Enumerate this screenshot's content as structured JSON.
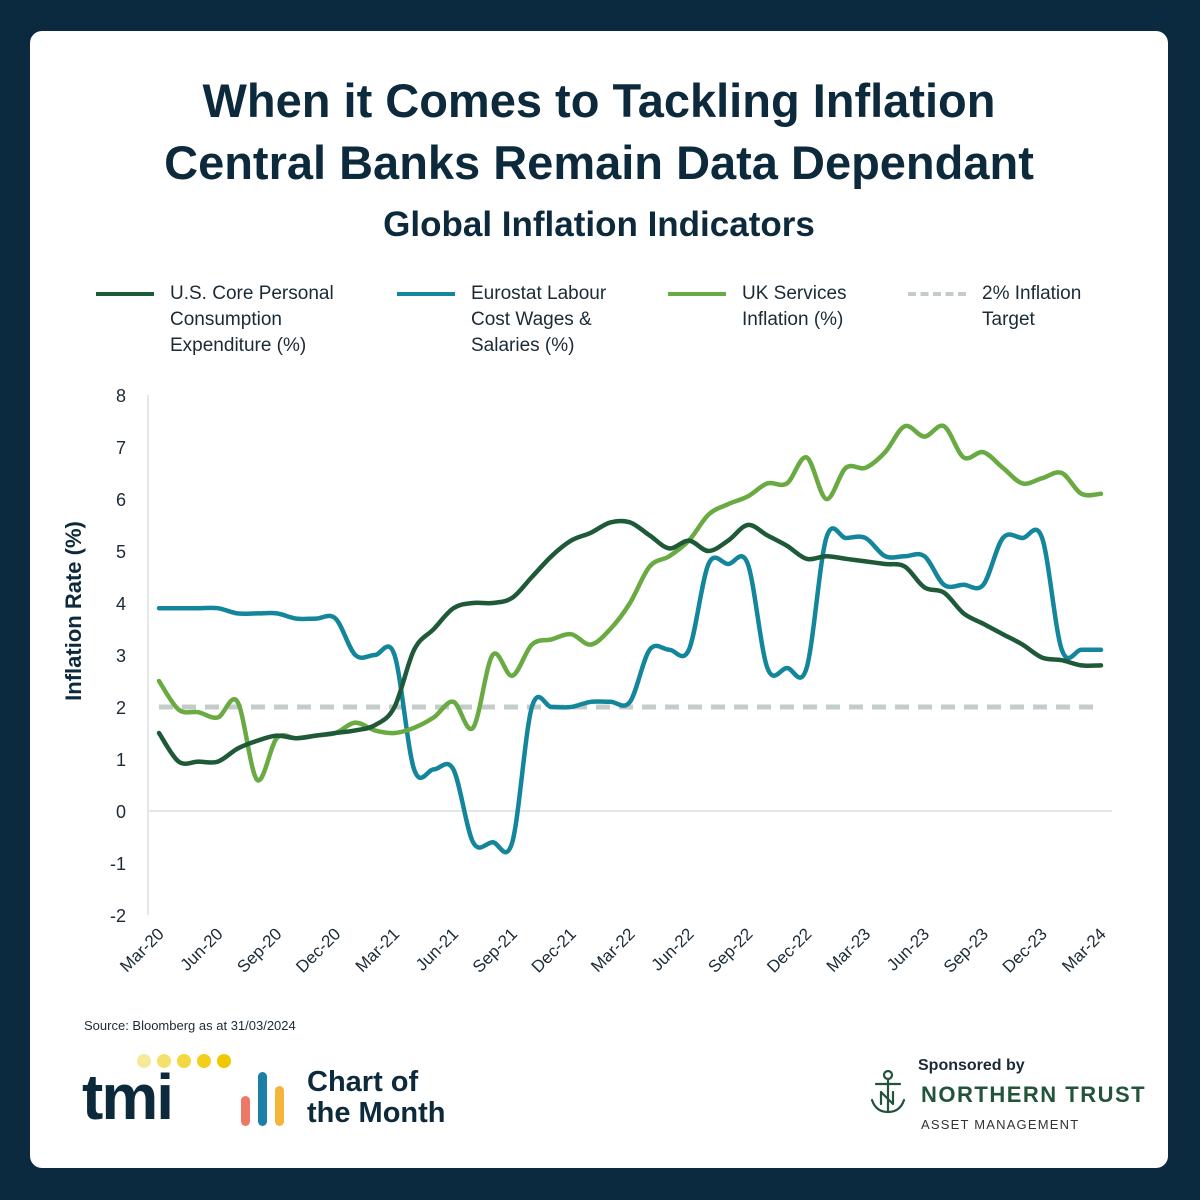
{
  "header": {
    "title_line1": "When it Comes to Tackling Inflation",
    "title_line2": "Central Banks Remain Data Dependant",
    "subtitle": "Global Inflation Indicators"
  },
  "legend": [
    {
      "label": "U.S. Core Personal Consumption Expenditure (%)",
      "color": "#1e5a38",
      "style": "solid"
    },
    {
      "label": "Eurostat Labour Cost Wages & Salaries (%)",
      "color": "#14869c",
      "style": "solid"
    },
    {
      "label": "UK Services Inflation (%)",
      "color": "#6aaa42",
      "style": "solid"
    },
    {
      "label": "2% Inflation Target",
      "color": "#c4ccca",
      "style": "dashed"
    }
  ],
  "chart_data": {
    "type": "line",
    "ylabel": "Inflation Rate (%)",
    "ylim": [
      -2,
      8
    ],
    "yticks": [
      -2,
      -1,
      0,
      1,
      2,
      3,
      4,
      5,
      6,
      7,
      8
    ],
    "grid": false,
    "legend_position": "top",
    "x_range": [
      "2020-03",
      "2024-03"
    ],
    "x_tick_labels": [
      "Mar-20",
      "Jun-20",
      "Sep-20",
      "Dec-20",
      "Mar-21",
      "Jun-21",
      "Sep-21",
      "Dec-21",
      "Mar-22",
      "Jun-22",
      "Sep-22",
      "Dec-22",
      "Mar-23",
      "Jun-23",
      "Sep-23",
      "Dec-23",
      "Mar-24"
    ],
    "series": [
      {
        "name": "U.S. Core Personal Consumption Expenditure (%)",
        "color": "#1e5a38",
        "points": [
          [
            "2020-03",
            1.5
          ],
          [
            "2020-04",
            0.95
          ],
          [
            "2020-05",
            0.95
          ],
          [
            "2020-06",
            0.95
          ],
          [
            "2020-07",
            1.2
          ],
          [
            "2020-08",
            1.35
          ],
          [
            "2020-09",
            1.45
          ],
          [
            "2020-10",
            1.4
          ],
          [
            "2020-11",
            1.45
          ],
          [
            "2020-12",
            1.5
          ],
          [
            "2021-01",
            1.55
          ],
          [
            "2021-02",
            1.65
          ],
          [
            "2021-03",
            2.0
          ],
          [
            "2021-04",
            3.1
          ],
          [
            "2021-05",
            3.5
          ],
          [
            "2021-06",
            3.9
          ],
          [
            "2021-07",
            4.0
          ],
          [
            "2021-08",
            4.0
          ],
          [
            "2021-09",
            4.1
          ],
          [
            "2021-10",
            4.5
          ],
          [
            "2021-11",
            4.9
          ],
          [
            "2021-12",
            5.2
          ],
          [
            "2022-01",
            5.35
          ],
          [
            "2022-02",
            5.55
          ],
          [
            "2022-03",
            5.55
          ],
          [
            "2022-04",
            5.3
          ],
          [
            "2022-05",
            5.05
          ],
          [
            "2022-06",
            5.2
          ],
          [
            "2022-07",
            5.0
          ],
          [
            "2022-08",
            5.2
          ],
          [
            "2022-09",
            5.5
          ],
          [
            "2022-10",
            5.3
          ],
          [
            "2022-11",
            5.1
          ],
          [
            "2022-12",
            4.85
          ],
          [
            "2023-01",
            4.9
          ],
          [
            "2023-02",
            4.85
          ],
          [
            "2023-03",
            4.8
          ],
          [
            "2023-04",
            4.75
          ],
          [
            "2023-05",
            4.7
          ],
          [
            "2023-06",
            4.3
          ],
          [
            "2023-07",
            4.2
          ],
          [
            "2023-08",
            3.8
          ],
          [
            "2023-09",
            3.6
          ],
          [
            "2023-10",
            3.4
          ],
          [
            "2023-11",
            3.2
          ],
          [
            "2023-12",
            2.95
          ],
          [
            "2024-01",
            2.9
          ],
          [
            "2024-02",
            2.8
          ],
          [
            "2024-03",
            2.8
          ]
        ]
      },
      {
        "name": "Eurostat Labour Cost Wages & Salaries (%)",
        "color": "#14869c",
        "points": [
          [
            "2020-03",
            3.9
          ],
          [
            "2020-04",
            3.9
          ],
          [
            "2020-05",
            3.9
          ],
          [
            "2020-06",
            3.9
          ],
          [
            "2020-07",
            3.8
          ],
          [
            "2020-08",
            3.8
          ],
          [
            "2020-09",
            3.8
          ],
          [
            "2020-10",
            3.7
          ],
          [
            "2020-11",
            3.7
          ],
          [
            "2020-12",
            3.7
          ],
          [
            "2021-01",
            3.0
          ],
          [
            "2021-02",
            3.0
          ],
          [
            "2021-03",
            3.0
          ],
          [
            "2021-04",
            0.8
          ],
          [
            "2021-05",
            0.8
          ],
          [
            "2021-06",
            0.8
          ],
          [
            "2021-07",
            -0.6
          ],
          [
            "2021-08",
            -0.6
          ],
          [
            "2021-09",
            -0.6
          ],
          [
            "2021-10",
            2.0
          ],
          [
            "2021-11",
            2.0
          ],
          [
            "2021-12",
            2.0
          ],
          [
            "2022-01",
            2.1
          ],
          [
            "2022-02",
            2.1
          ],
          [
            "2022-03",
            2.1
          ],
          [
            "2022-04",
            3.1
          ],
          [
            "2022-05",
            3.1
          ],
          [
            "2022-06",
            3.1
          ],
          [
            "2022-07",
            4.75
          ],
          [
            "2022-08",
            4.75
          ],
          [
            "2022-09",
            4.75
          ],
          [
            "2022-10",
            2.75
          ],
          [
            "2022-11",
            2.75
          ],
          [
            "2022-12",
            2.75
          ],
          [
            "2023-01",
            5.25
          ],
          [
            "2023-02",
            5.25
          ],
          [
            "2023-03",
            5.25
          ],
          [
            "2023-04",
            4.9
          ],
          [
            "2023-05",
            4.9
          ],
          [
            "2023-06",
            4.9
          ],
          [
            "2023-07",
            4.35
          ],
          [
            "2023-08",
            4.35
          ],
          [
            "2023-09",
            4.35
          ],
          [
            "2023-10",
            5.25
          ],
          [
            "2023-11",
            5.25
          ],
          [
            "2023-12",
            5.25
          ],
          [
            "2024-01",
            3.1
          ],
          [
            "2024-02",
            3.1
          ],
          [
            "2024-03",
            3.1
          ]
        ]
      },
      {
        "name": "UK Services Inflation (%)",
        "color": "#6aaa42",
        "points": [
          [
            "2020-03",
            2.5
          ],
          [
            "2020-04",
            1.95
          ],
          [
            "2020-05",
            1.9
          ],
          [
            "2020-06",
            1.8
          ],
          [
            "2020-07",
            2.1
          ],
          [
            "2020-08",
            0.6
          ],
          [
            "2020-09",
            1.4
          ],
          [
            "2020-10",
            1.4
          ],
          [
            "2020-11",
            1.45
          ],
          [
            "2020-12",
            1.5
          ],
          [
            "2021-01",
            1.7
          ],
          [
            "2021-02",
            1.55
          ],
          [
            "2021-03",
            1.5
          ],
          [
            "2021-04",
            1.6
          ],
          [
            "2021-05",
            1.8
          ],
          [
            "2021-06",
            2.1
          ],
          [
            "2021-07",
            1.6
          ],
          [
            "2021-08",
            3.0
          ],
          [
            "2021-09",
            2.6
          ],
          [
            "2021-10",
            3.2
          ],
          [
            "2021-11",
            3.3
          ],
          [
            "2021-12",
            3.4
          ],
          [
            "2022-01",
            3.2
          ],
          [
            "2022-02",
            3.5
          ],
          [
            "2022-03",
            4.0
          ],
          [
            "2022-04",
            4.7
          ],
          [
            "2022-05",
            4.9
          ],
          [
            "2022-06",
            5.2
          ],
          [
            "2022-07",
            5.7
          ],
          [
            "2022-08",
            5.9
          ],
          [
            "2022-09",
            6.05
          ],
          [
            "2022-10",
            6.3
          ],
          [
            "2022-11",
            6.3
          ],
          [
            "2022-12",
            6.8
          ],
          [
            "2023-01",
            6.0
          ],
          [
            "2023-02",
            6.6
          ],
          [
            "2023-03",
            6.6
          ],
          [
            "2023-04",
            6.9
          ],
          [
            "2023-05",
            7.4
          ],
          [
            "2023-06",
            7.2
          ],
          [
            "2023-07",
            7.4
          ],
          [
            "2023-08",
            6.8
          ],
          [
            "2023-09",
            6.9
          ],
          [
            "2023-10",
            6.6
          ],
          [
            "2023-11",
            6.3
          ],
          [
            "2023-12",
            6.4
          ],
          [
            "2024-01",
            6.5
          ],
          [
            "2024-02",
            6.1
          ],
          [
            "2024-03",
            6.1
          ]
        ]
      },
      {
        "name": "2% Inflation Target",
        "color": "#c4ccca",
        "dashed": true,
        "points": [
          [
            "2020-03",
            2
          ],
          [
            "2024-03",
            2
          ]
        ]
      }
    ]
  },
  "source": "Source: Bloomberg as at 31/03/2024",
  "branding": {
    "tmi_logo_text": "tmi",
    "chart_of_the_month_line1": "Chart of",
    "chart_of_the_month_line2": "the Month",
    "sponsored_by": "Sponsored by",
    "sponsor_name": "NORTHERN TRUST",
    "sponsor_sub": "ASSET MANAGEMENT"
  }
}
